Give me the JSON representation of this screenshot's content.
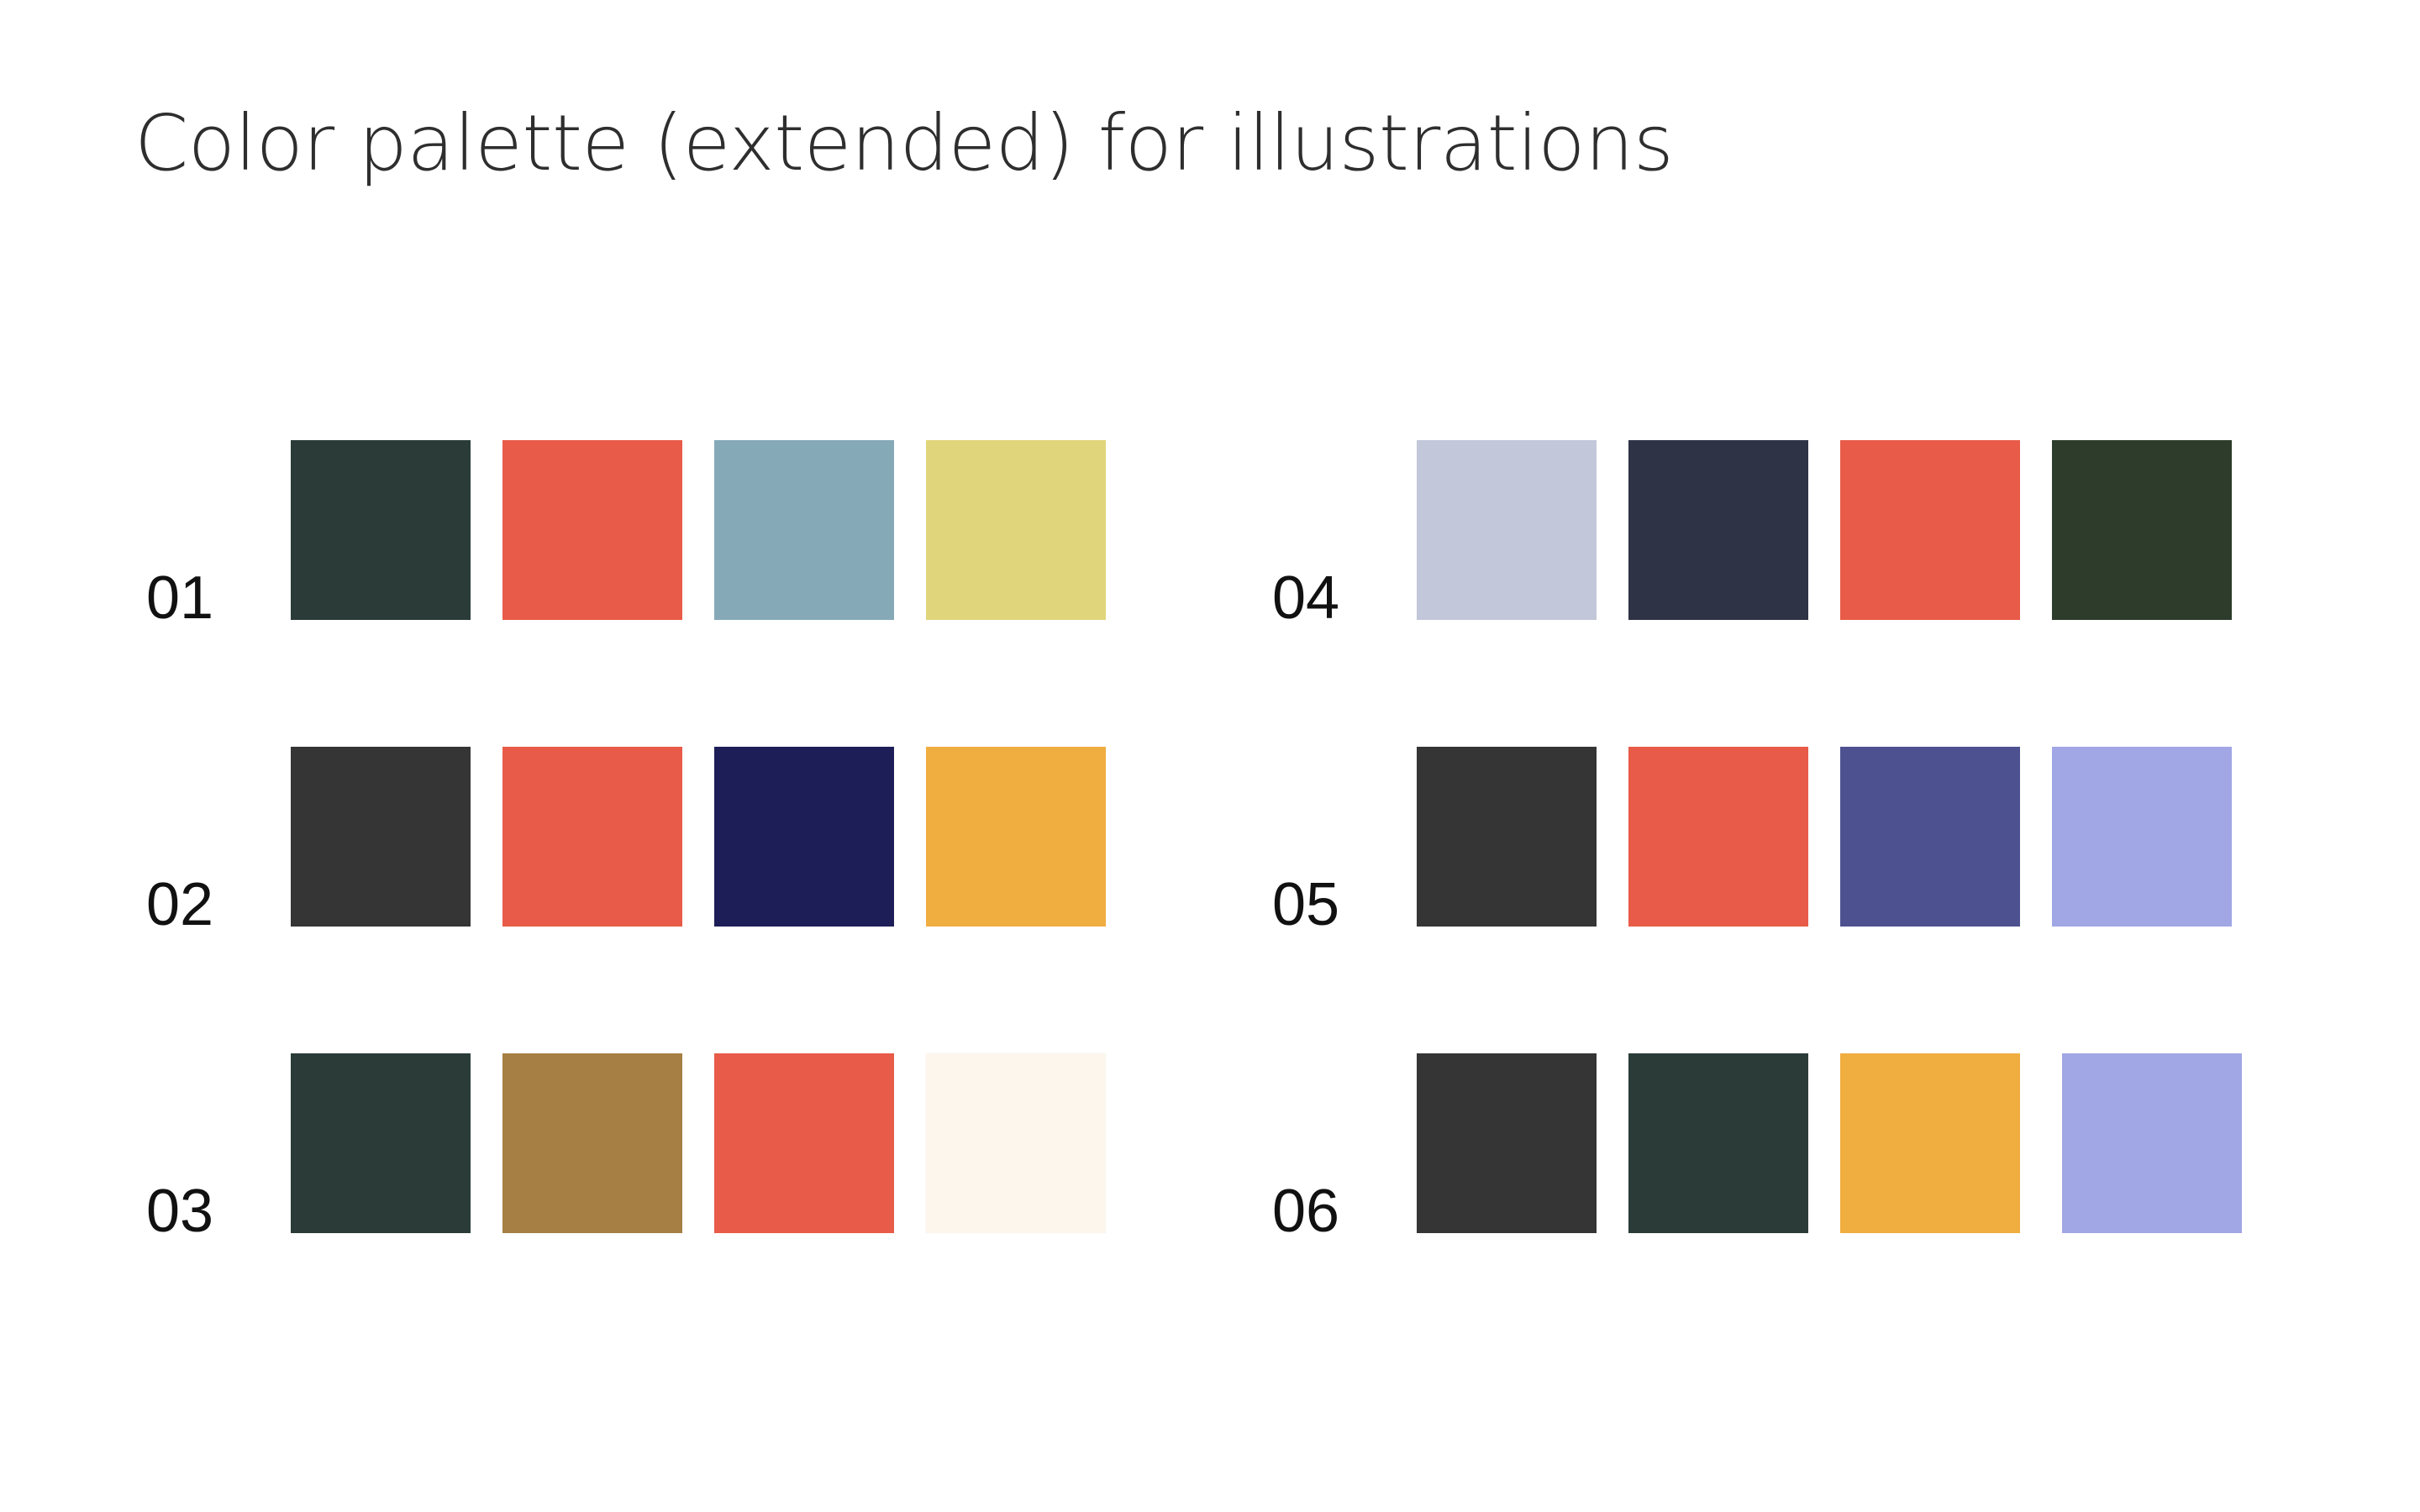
{
  "title": "Color palette (extended) for illustrations",
  "palettes": [
    {
      "label": "01",
      "colors": [
        "#2b3c38",
        "#e85b48",
        "#86a9b8",
        "#e1d57b"
      ]
    },
    {
      "label": "02",
      "colors": [
        "#353536",
        "#e85b48",
        "#1d1e58",
        "#f0ad40"
      ]
    },
    {
      "label": "03",
      "colors": [
        "#2b3c38",
        "#a57f43",
        "#e85b48",
        "#fdf6ec"
      ]
    },
    {
      "label": "04",
      "colors": [
        "#c2c7d9",
        "#2e3346",
        "#e85b48",
        "#2e3c2c"
      ]
    },
    {
      "label": "05",
      "colors": [
        "#353536",
        "#e85b48",
        "#4d518f",
        "#a1a6e4"
      ]
    },
    {
      "label": "06",
      "colors": [
        "#353536",
        "#2b3c38",
        "#f0ad40",
        "#a1a6e4"
      ]
    }
  ]
}
